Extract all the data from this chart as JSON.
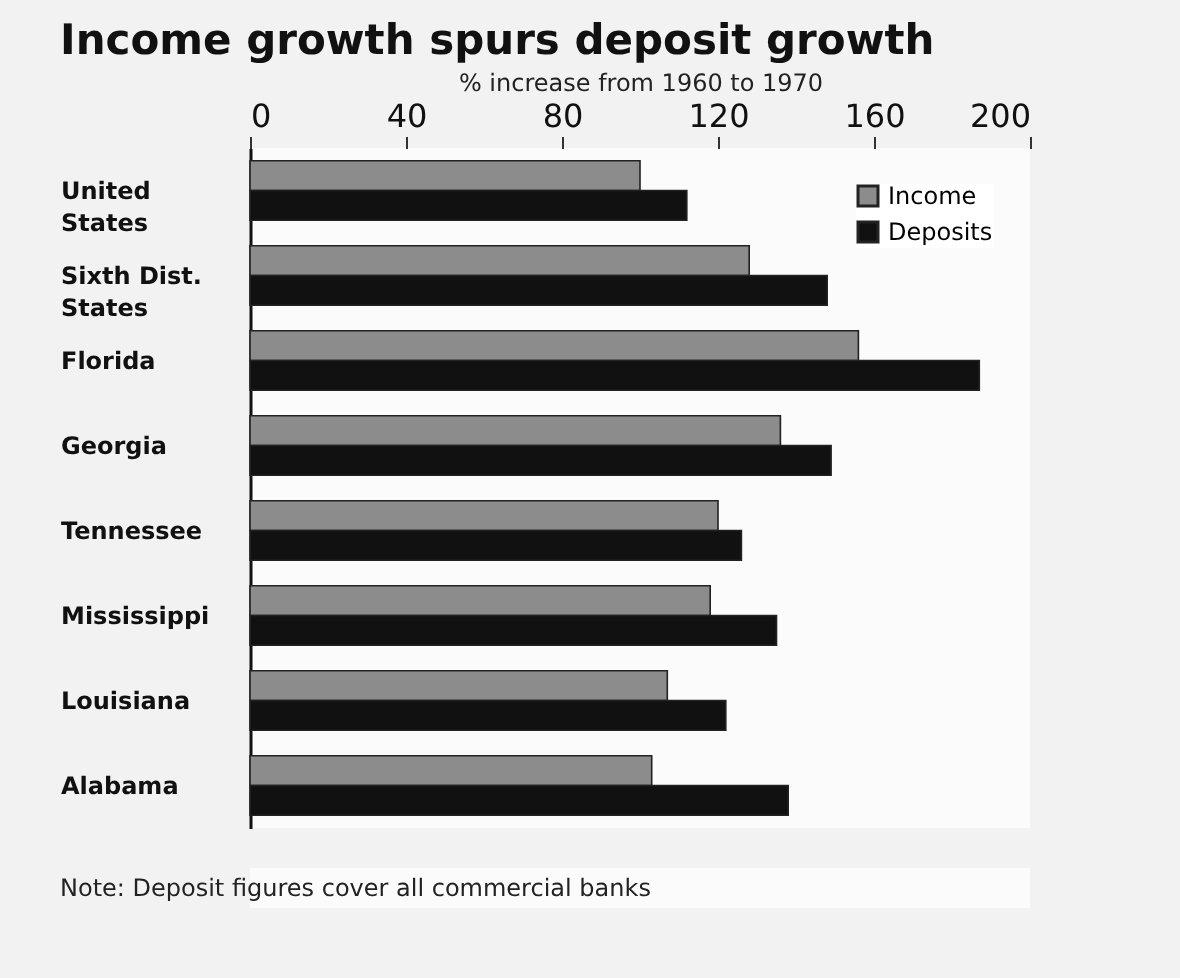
{
  "chart_data": {
    "type": "bar",
    "orientation": "horizontal",
    "title": "Income growth spurs deposit growth",
    "xlabel": "% increase from 1960 to 1970",
    "categories": [
      "United States",
      "Sixth Dist. States",
      "Florida",
      "Georgia",
      "Tennessee",
      "Mississippi",
      "Louisiana",
      "Alabama"
    ],
    "series": [
      {
        "name": "Income",
        "color": "#8c8c8c",
        "values": [
          100,
          128,
          156,
          136,
          120,
          118,
          107,
          103
        ]
      },
      {
        "name": "Deposits",
        "color": "#111111",
        "values": [
          112,
          148,
          187,
          149,
          126,
          135,
          122,
          138
        ]
      }
    ],
    "xlim": [
      0,
      200
    ],
    "xticks": [
      0,
      40,
      80,
      120,
      160,
      200
    ],
    "grid": false,
    "legend": "top right",
    "annotations": [
      "Note:  Deposit figures cover all commercial banks"
    ]
  }
}
